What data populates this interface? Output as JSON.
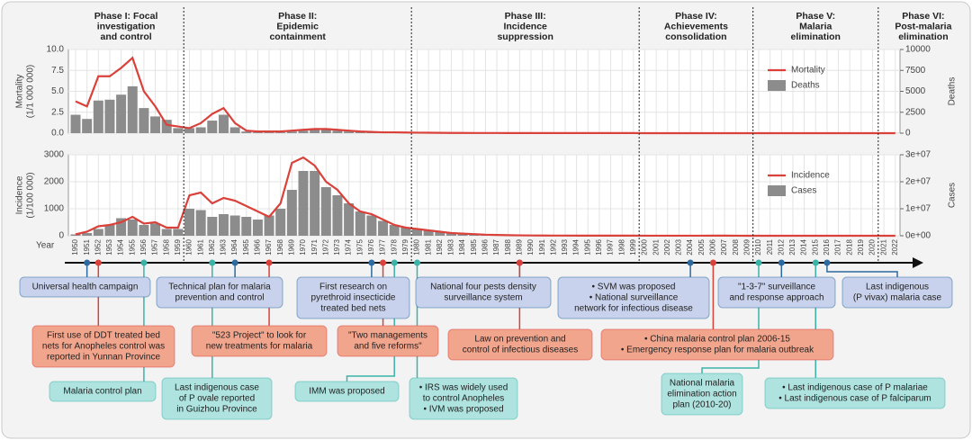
{
  "phases": [
    {
      "lines": [
        "Phase I: Focal",
        "investigation",
        "and control"
      ],
      "start": 1950
    },
    {
      "lines": [
        "Phase II:",
        "Epidemic",
        "containment"
      ],
      "start": 1960
    },
    {
      "lines": [
        "Phase III:",
        "Incidence",
        "suppression"
      ],
      "start": 1980
    },
    {
      "lines": [
        "Phase IV:",
        "Achievements",
        "consolidation"
      ],
      "start": 2000
    },
    {
      "lines": [
        "Phase V:",
        "Malaria",
        "elimination"
      ],
      "start": 2010
    },
    {
      "lines": [
        "Phase VI:",
        "Post-malaria",
        "elimination"
      ],
      "start": 2021
    }
  ],
  "chart_data": [
    {
      "type": "combo",
      "ylabel": [
        "Mortality",
        "(1/1 000 000)"
      ],
      "y2label": "Deaths",
      "grid": true,
      "legend": "top-right",
      "x": [
        1950,
        1951,
        1952,
        1953,
        1954,
        1955,
        1956,
        1957,
        1958,
        1959,
        1960,
        1961,
        1962,
        1963,
        1964,
        1965,
        1966,
        1967,
        1968,
        1969,
        1970,
        1971,
        1972,
        1973,
        1974,
        1975,
        1976,
        1977,
        1978,
        1979,
        1980,
        1981,
        1982,
        1983,
        1984,
        1985,
        1986,
        1987,
        1988,
        1989,
        1990,
        1991,
        1992,
        1993,
        1994,
        1995,
        1996,
        1997,
        1998,
        1999,
        2000,
        2001,
        2002,
        2003,
        2004,
        2005,
        2006,
        2007,
        2008,
        2009,
        2010,
        2011,
        2012,
        2013,
        2014,
        2015,
        2016,
        2017,
        2018,
        2019,
        2020,
        2021,
        2022
      ],
      "ylim": [
        0,
        10
      ],
      "yticks": [
        {
          "value": 0,
          "label": "0.0"
        },
        2.5,
        {
          "value": 5,
          "label": "5.0"
        },
        7.5,
        {
          "value": 10,
          "label": "10.0"
        }
      ],
      "y2lim": [
        0,
        10000
      ],
      "y2ticks": [
        0,
        2500,
        5000,
        7500,
        10000
      ],
      "series": [
        {
          "name": "Mortality",
          "color": "#d9413a",
          "kind": "line",
          "values": [
            3.8,
            3.2,
            6.8,
            6.8,
            7.8,
            9.0,
            5.0,
            3.2,
            1.0,
            0.8,
            0.6,
            1.2,
            2.3,
            3.0,
            1.2,
            0.3,
            0.2,
            0.2,
            0.2,
            0.3,
            0.4,
            0.5,
            0.5,
            0.4,
            0.3,
            0.2,
            0.15,
            0.1,
            0.1,
            0.08,
            0.06,
            0.05,
            0.04,
            0.03,
            0.03,
            0.02,
            0.02,
            0.02,
            0.01,
            0.01,
            0.01,
            0.01,
            0.01,
            0.01,
            0.01,
            0.01,
            0.01,
            0.01,
            0.01,
            0.01,
            0,
            0,
            0,
            0,
            0,
            0,
            0,
            0,
            0,
            0,
            0,
            0,
            0,
            0,
            0,
            0,
            0,
            0,
            0,
            0,
            0,
            0,
            0
          ]
        },
        {
          "name": "Deaths",
          "color": "#8c8c8c",
          "kind": "bar",
          "axis": "y2",
          "values": [
            2200,
            1700,
            3900,
            4000,
            4600,
            5600,
            3000,
            2000,
            1600,
            600,
            600,
            700,
            1500,
            2200,
            700,
            200,
            100,
            100,
            100,
            200,
            300,
            400,
            400,
            300,
            200,
            150,
            100,
            80,
            60,
            50,
            40,
            30,
            25,
            20,
            15,
            10,
            10,
            8,
            6,
            5,
            5,
            4,
            3,
            3,
            2,
            2,
            2,
            2,
            2,
            2,
            20,
            20,
            20,
            20,
            20,
            20,
            20,
            20,
            20,
            20,
            20,
            20,
            20,
            20,
            20,
            20,
            20,
            20,
            20,
            20,
            20,
            20,
            20
          ]
        }
      ]
    },
    {
      "type": "combo",
      "ylabel": [
        "Incidence",
        "(1/100 000)"
      ],
      "y2label": "Cases",
      "xlabel": "Year",
      "grid": true,
      "legend": "top-right",
      "x": [
        1950,
        1951,
        1952,
        1953,
        1954,
        1955,
        1956,
        1957,
        1958,
        1959,
        1960,
        1961,
        1962,
        1963,
        1964,
        1965,
        1966,
        1967,
        1968,
        1969,
        1970,
        1971,
        1972,
        1973,
        1974,
        1975,
        1976,
        1977,
        1978,
        1979,
        1980,
        1981,
        1982,
        1983,
        1984,
        1985,
        1986,
        1987,
        1988,
        1989,
        1990,
        1991,
        1992,
        1993,
        1994,
        1995,
        1996,
        1997,
        1998,
        1999,
        2000,
        2001,
        2002,
        2003,
        2004,
        2005,
        2006,
        2007,
        2008,
        2009,
        2010,
        2011,
        2012,
        2013,
        2014,
        2015,
        2016,
        2017,
        2018,
        2019,
        2020,
        2021,
        2022
      ],
      "ylim": [
        0,
        3000
      ],
      "yticks": [
        0,
        1000,
        2000,
        3000
      ],
      "y2lim": [
        0,
        30000000
      ],
      "y2ticks": [
        {
          "value": 0,
          "label": "0e+00"
        },
        {
          "value": 10000000,
          "label": "1e+07"
        },
        {
          "value": 20000000,
          "label": "2e+07"
        },
        {
          "value": 30000000,
          "label": "3e+07"
        }
      ],
      "series": [
        {
          "name": "Incidence",
          "color": "#d9413a",
          "kind": "line",
          "values": [
            50,
            150,
            350,
            400,
            500,
            700,
            450,
            500,
            300,
            300,
            1500,
            1600,
            1200,
            1400,
            1300,
            1100,
            900,
            700,
            1200,
            2700,
            2900,
            2600,
            2000,
            1700,
            1200,
            900,
            800,
            600,
            400,
            300,
            250,
            200,
            150,
            100,
            80,
            60,
            40,
            30,
            20,
            15,
            10,
            8,
            7,
            6,
            5,
            5,
            4,
            4,
            3,
            3,
            2,
            2,
            2,
            2,
            2,
            2,
            3,
            3,
            2,
            1,
            1,
            0,
            0,
            0,
            0,
            0,
            0,
            0,
            0,
            0,
            0,
            0,
            0
          ]
        },
        {
          "name": "Cases",
          "color": "#8c8c8c",
          "kind": "bar",
          "axis": "y2",
          "values": [
            500000,
            1000000,
            2500000,
            4000000,
            6500000,
            6000000,
            4000000,
            4500000,
            2500000,
            2500000,
            10000000,
            9500000,
            7000000,
            8000000,
            7500000,
            7000000,
            6000000,
            7500000,
            10000000,
            17000000,
            24000000,
            24000000,
            18000000,
            15000000,
            12000000,
            9000000,
            7500000,
            5500000,
            4000000,
            3000000,
            2500000,
            2000000,
            1500000,
            1000000,
            800000,
            600000,
            400000,
            300000,
            200000,
            150000,
            120000,
            90000,
            70000,
            60000,
            55000,
            50000,
            40000,
            35000,
            30000,
            25000,
            24000,
            25000,
            30000,
            40000,
            35000,
            40000,
            60000,
            50000,
            27000,
            15000,
            7000,
            4000,
            2600,
            4000,
            3000,
            3100,
            3300,
            2700,
            2500,
            2700,
            1000,
            800,
            800
          ]
        }
      ]
    }
  ],
  "timeline": {
    "events": [
      {
        "year": 1951,
        "color": "#2c6aa0",
        "fill": "#c9d2ec",
        "lines": [
          "Universal health campaign"
        ]
      },
      {
        "year": 1964,
        "color": "#2c6aa0",
        "fill": "#c9d2ec",
        "lines": [
          "Technical plan for malaria",
          "prevention and control"
        ]
      },
      {
        "year": 1976,
        "color": "#2c6aa0",
        "fill": "#c9d2ec",
        "lines": [
          "First research on",
          "pyrethroid insecticide",
          "treated bed nets"
        ]
      },
      {
        "year": 1989,
        "color": "#2c6aa0",
        "fill": "#c9d2ec",
        "lines": [
          "National four pests density",
          "surveillance system"
        ]
      },
      {
        "year": 2004,
        "color": "#2c6aa0",
        "fill": "#c9d2ec",
        "lines": [
          "• SVM was proposed",
          "• National surveillance",
          "network for infectious disease"
        ]
      },
      {
        "year": 2012,
        "color": "#2c6aa0",
        "fill": "#c9d2ec",
        "lines": [
          "\"1-3-7\" surveillance",
          "and response approach"
        ]
      },
      {
        "year": 2016,
        "color": "#2c6aa0",
        "fill": "#c9d2ec",
        "lines": [
          "Last indigenous",
          "(P vivax) malaria case"
        ]
      },
      {
        "year": 1952,
        "color": "#d9413a",
        "fill": "#f2a58d",
        "lines": [
          "First use of DDT treated bed",
          "nets for Anopheles control was",
          "reported in Yunnan Province"
        ]
      },
      {
        "year": 1967,
        "color": "#d9413a",
        "fill": "#f2a58d",
        "lines": [
          "\"523 Project\" to look for",
          "new treatments for malaria"
        ]
      },
      {
        "year": 1977,
        "color": "#d9413a",
        "fill": "#f2a58d",
        "lines": [
          "\"Two managements",
          "and five reforms\""
        ]
      },
      {
        "year": 1989,
        "color": "#d9413a",
        "fill": "#f2a58d",
        "lines": [
          "Law on prevention and",
          "control of infectious diseases"
        ]
      },
      {
        "year": 2006,
        "color": "#d9413a",
        "fill": "#f2a58d",
        "lines": [
          "• China malaria control plan 2006-15",
          "• Emergency response plan for malaria outbreak"
        ]
      },
      {
        "year": 1956,
        "color": "#3bb3a8",
        "fill": "#aee3df",
        "lines": [
          "Malaria control plan"
        ]
      },
      {
        "year": 1962,
        "color": "#3bb3a8",
        "fill": "#aee3df",
        "lines": [
          "Last indigenous case",
          "of P ovale reported",
          "in Guizhou Province"
        ]
      },
      {
        "year": 1978,
        "color": "#3bb3a8",
        "fill": "#aee3df",
        "lines": [
          "IMM was proposed"
        ]
      },
      {
        "year": 1980,
        "color": "#3bb3a8",
        "fill": "#aee3df",
        "lines": [
          "• IRS was widely used",
          "to control Anopheles",
          "• IVM was proposed"
        ]
      },
      {
        "year": 2010,
        "color": "#3bb3a8",
        "fill": "#aee3df",
        "lines": [
          "National malaria",
          "elimination action",
          "plan (2010-20)"
        ]
      },
      {
        "year": 2015,
        "color": "#3bb3a8",
        "fill": "#aee3df",
        "lines": [
          "• Last indigenous case of P malariae",
          "• Last indigenous case of P falciparum"
        ]
      }
    ]
  }
}
